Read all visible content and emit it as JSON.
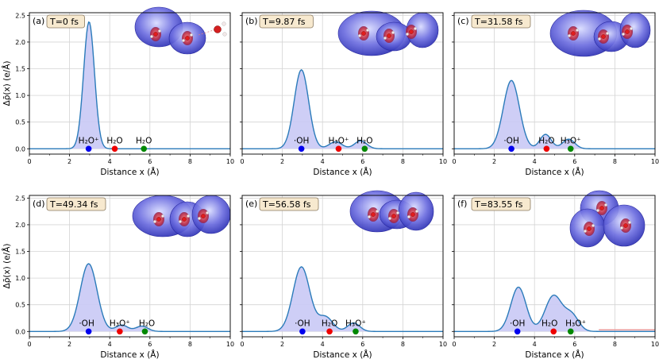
{
  "chart_data": {
    "type": "line",
    "figure_layout": "2x3 grid",
    "shared_axes": {
      "xlabel": "Distance x (Å)",
      "ylabel": "Δρ̄(x) (e/Å)",
      "xlim": [
        0,
        10
      ],
      "ylim": [
        -0.1,
        2.55
      ],
      "xticks": [
        0,
        2,
        4,
        6,
        8,
        10
      ],
      "yticks": [
        0.0,
        0.5,
        1.0,
        1.5,
        2.0,
        2.5
      ],
      "ytick_labels": [
        "0.0",
        "0.5",
        "1.0",
        "1.5",
        "2.0",
        "2.5"
      ],
      "grid": true,
      "fill_color": "#c9c9f5",
      "line_color": "#2b7bba"
    },
    "panels": [
      {
        "tag": "(a)",
        "time_label": "T=0 fs",
        "peaks": [
          {
            "mu": 2.97,
            "amp": 2.38,
            "sigma": 0.27
          }
        ],
        "markers": [
          {
            "x": 2.95,
            "y": 0.0,
            "color": "#0000ee",
            "label": "H₂O⁺",
            "label_dx": 0
          },
          {
            "x": 4.25,
            "y": 0.0,
            "color": "#ee0000",
            "label": "H₂O",
            "label_dx": 0
          },
          {
            "x": 5.7,
            "y": 0.0,
            "color": "#008800",
            "label": "H₂O",
            "label_dx": 0
          }
        ],
        "tail": null
      },
      {
        "tag": "(b)",
        "time_label": "T=9.87 fs",
        "peaks": [
          {
            "mu": 2.95,
            "amp": 1.48,
            "sigma": 0.36
          },
          {
            "mu": 4.65,
            "amp": 0.13,
            "sigma": 0.32
          },
          {
            "mu": 5.9,
            "amp": 0.15,
            "sigma": 0.3
          }
        ],
        "markers": [
          {
            "x": 2.95,
            "y": 0.0,
            "color": "#0000ee",
            "label": "·OH",
            "label_dx": 0
          },
          {
            "x": 4.8,
            "y": 0.0,
            "color": "#ee0000",
            "label": "H₃O⁺",
            "label_dx": 0
          },
          {
            "x": 6.1,
            "y": 0.0,
            "color": "#008800",
            "label": "H₂O",
            "label_dx": 0
          }
        ],
        "tail": null
      },
      {
        "tag": "(c)",
        "time_label": "T=31.58 fs",
        "peaks": [
          {
            "mu": 2.85,
            "amp": 1.28,
            "sigma": 0.4
          },
          {
            "mu": 4.55,
            "amp": 0.27,
            "sigma": 0.28
          },
          {
            "mu": 5.7,
            "amp": 0.18,
            "sigma": 0.3
          }
        ],
        "markers": [
          {
            "x": 2.85,
            "y": 0.0,
            "color": "#0000ee",
            "label": "·OH",
            "label_dx": 0
          },
          {
            "x": 4.6,
            "y": 0.0,
            "color": "#ee0000",
            "label": "H₂O",
            "label_dx": 0
          },
          {
            "x": 5.8,
            "y": 0.0,
            "color": "#008800",
            "label": "H₃O⁺",
            "label_dx": 0
          }
        ],
        "tail": null
      },
      {
        "tag": "(d)",
        "time_label": "T=49.34 fs",
        "peaks": [
          {
            "mu": 2.95,
            "amp": 1.27,
            "sigma": 0.42
          },
          {
            "mu": 4.6,
            "amp": 0.12,
            "sigma": 0.3
          },
          {
            "mu": 5.6,
            "amp": 0.1,
            "sigma": 0.3
          }
        ],
        "markers": [
          {
            "x": 2.95,
            "y": 0.0,
            "color": "#0000ee",
            "label": "·OH",
            "label_dx": -0.1
          },
          {
            "x": 4.5,
            "y": 0.0,
            "color": "#ee0000",
            "label": "H₃O⁺",
            "label_dx": 0
          },
          {
            "x": 5.75,
            "y": 0.0,
            "color": "#008800",
            "label": "H₂O",
            "label_dx": 0.1
          }
        ],
        "tail": null
      },
      {
        "tag": "(e)",
        "time_label": "T=56.58 fs",
        "peaks": [
          {
            "mu": 2.95,
            "amp": 1.21,
            "sigma": 0.42
          },
          {
            "mu": 4.15,
            "amp": 0.27,
            "sigma": 0.36
          },
          {
            "mu": 5.55,
            "amp": 0.16,
            "sigma": 0.3
          }
        ],
        "markers": [
          {
            "x": 3.0,
            "y": 0.0,
            "color": "#0000ee",
            "label": "·OH",
            "label_dx": 0
          },
          {
            "x": 4.35,
            "y": 0.0,
            "color": "#ee0000",
            "label": "H₂O",
            "label_dx": 0
          },
          {
            "x": 5.65,
            "y": 0.0,
            "color": "#008800",
            "label": "H₃O⁺",
            "label_dx": 0
          }
        ],
        "tail": null
      },
      {
        "tag": "(f)",
        "time_label": "T=83.55 fs",
        "peaks": [
          {
            "mu": 3.2,
            "amp": 0.83,
            "sigma": 0.38
          },
          {
            "mu": 4.95,
            "amp": 0.67,
            "sigma": 0.42
          },
          {
            "mu": 5.85,
            "amp": 0.3,
            "sigma": 0.35
          }
        ],
        "markers": [
          {
            "x": 3.15,
            "y": 0.0,
            "color": "#0000ee",
            "label": "·OH",
            "label_dx": 0
          },
          {
            "x": 4.95,
            "y": 0.0,
            "color": "#ee0000",
            "label": "H₂O",
            "label_dx": -0.2
          },
          {
            "x": 5.8,
            "y": 0.0,
            "color": "#008800",
            "label": "H₃O⁺",
            "label_dx": 0.25
          }
        ],
        "tail": {
          "from": 7.2,
          "to": 10,
          "y": 0.03,
          "color": "#e89b9b"
        }
      }
    ]
  }
}
